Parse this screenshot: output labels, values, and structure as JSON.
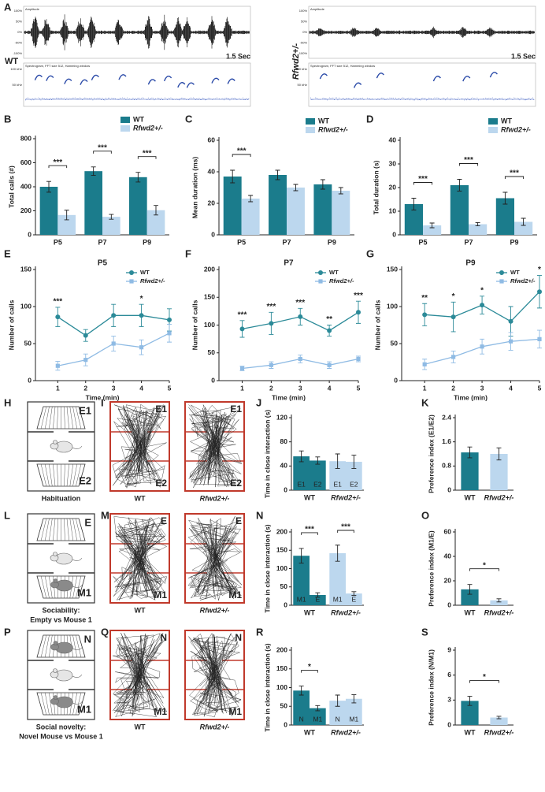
{
  "figure": {
    "panel_labels": [
      "A",
      "B",
      "C",
      "D",
      "E",
      "F",
      "G",
      "H",
      "I",
      "J",
      "K",
      "L",
      "M",
      "N",
      "O",
      "P",
      "Q",
      "R",
      "S"
    ],
    "audio": [
      {
        "genotype": "WT",
        "amplitude_title": "Amplitude",
        "amplitude_ticks": [
          "100%",
          "50%",
          "0%",
          "-50%",
          "-100%"
        ],
        "spectrogram_title": "Spectrogram, FFT size 512, Hamming window",
        "frequency_ticks": [
          "100 kHz",
          "50 kHz"
        ],
        "scale": "1.5 Sec"
      },
      {
        "genotype": "Rfwd2+/-",
        "amplitude_title": "Amplitude",
        "amplitude_ticks": [
          "100%",
          "50%",
          "0%",
          "-50%",
          "-100%"
        ],
        "spectrogram_title": "Spectrogram, FFT size 512, Hamming window",
        "frequency_ticks": [
          "100 kHz",
          "50 kHz"
        ],
        "scale": "1.5 Sec"
      }
    ],
    "tests": [
      {
        "top": "E1",
        "bottom": "E2",
        "caption": [
          "Habituation"
        ],
        "tracks": [
          {
            "genotype": "WT",
            "top": "E1",
            "bottom": "E2"
          },
          {
            "genotype": "Rfwd2+/-",
            "top": "E1",
            "bottom": "E2"
          }
        ]
      },
      {
        "top": "E",
        "bottom": "M1",
        "caption": [
          "Sociability:",
          "Empty vs Mouse 1"
        ],
        "tracks": [
          {
            "genotype": "WT",
            "top": "E",
            "bottom": "M1"
          },
          {
            "genotype": "Rfwd2+/-",
            "top": "E",
            "bottom": "M1"
          }
        ]
      },
      {
        "top": "N",
        "bottom": "M1",
        "caption": [
          "Social novelty:",
          "Novel Mouse vs Mouse 1"
        ],
        "tracks": [
          {
            "genotype": "WT",
            "top": "N",
            "bottom": "M1"
          },
          {
            "genotype": "Rfwd2+/-",
            "top": "N",
            "bottom": "M1"
          }
        ]
      }
    ]
  },
  "chart_data": [
    {
      "type": "bar",
      "ylabel": "Total calls (#)",
      "categories": [
        "P5",
        "P7",
        "P9"
      ],
      "series": [
        {
          "name": "WT",
          "color": "#1b7c8c",
          "values": [
            400,
            530,
            480
          ],
          "errors": [
            45,
            35,
            40
          ]
        },
        {
          "name": "Rfwd2+/-",
          "color": "#bcd7ee",
          "values": [
            165,
            150,
            205
          ],
          "errors": [
            40,
            20,
            40
          ]
        }
      ],
      "ylim": [
        0,
        800
      ],
      "yticks": [
        0,
        200,
        400,
        600,
        800
      ],
      "legend": "top-right",
      "significance": [
        {
          "text": "***",
          "category": "P5"
        },
        {
          "text": "***",
          "category": "P7"
        },
        {
          "text": "***",
          "category": "P9"
        }
      ]
    },
    {
      "type": "bar",
      "ylabel": "Mean duration (ms)",
      "categories": [
        "P5",
        "P7",
        "P9"
      ],
      "series": [
        {
          "name": "WT",
          "color": "#1b7c8c",
          "values": [
            37,
            38,
            32
          ],
          "errors": [
            4,
            3,
            3
          ]
        },
        {
          "name": "Rfwd2+/-",
          "color": "#bcd7ee",
          "values": [
            23,
            30,
            28
          ],
          "errors": [
            2,
            2,
            2
          ]
        }
      ],
      "ylim": [
        0,
        60
      ],
      "yticks": [
        0,
        20,
        40,
        60
      ],
      "legend": "top-right",
      "significance": [
        {
          "text": "***",
          "category": "P5"
        }
      ]
    },
    {
      "type": "bar",
      "ylabel": "Total duration (s)",
      "categories": [
        "P5",
        "P7",
        "P9"
      ],
      "series": [
        {
          "name": "WT",
          "color": "#1b7c8c",
          "values": [
            13,
            21,
            15.5
          ],
          "errors": [
            2.5,
            2.5,
            2.5
          ]
        },
        {
          "name": "Rfwd2+/-",
          "color": "#bcd7ee",
          "values": [
            4,
            4.5,
            5.5
          ],
          "errors": [
            1,
            0.7,
            1.5
          ]
        }
      ],
      "ylim": [
        0,
        40
      ],
      "yticks": [
        0,
        10,
        20,
        30,
        40
      ],
      "legend": "top-right",
      "significance": [
        {
          "text": "***",
          "category": "P5"
        },
        {
          "text": "***",
          "category": "P7"
        },
        {
          "text": "***",
          "category": "P9"
        }
      ]
    },
    {
      "type": "line",
      "title": "P5",
      "xlabel": "Time (min)",
      "ylabel": "Number of calls",
      "x": [
        1,
        2,
        3,
        4,
        5
      ],
      "xlim": [
        0.2,
        5
      ],
      "xticks": [
        1,
        2,
        3,
        4,
        5
      ],
      "ylim": [
        0,
        150
      ],
      "yticks": [
        0,
        50,
        100,
        150
      ],
      "legend": "top-right",
      "series": [
        {
          "name": "WT",
          "color": "#2b8a98",
          "marker": "circle",
          "values": [
            86,
            61,
            88,
            88,
            82
          ],
          "errors": [
            13,
            8,
            15,
            15,
            15
          ]
        },
        {
          "name": "Rfwd2+/-",
          "color": "#8fbbe4",
          "marker": "square",
          "values": [
            20,
            28,
            50,
            45,
            64
          ],
          "errors": [
            6,
            8,
            10,
            10,
            12
          ]
        }
      ],
      "annotations": [
        {
          "text": "***",
          "x": 1
        },
        {
          "text": "*",
          "x": 4
        }
      ]
    },
    {
      "type": "line",
      "title": "P7",
      "xlabel": "Time (min)",
      "ylabel": "Number of calls",
      "x": [
        1,
        2,
        3,
        4,
        5
      ],
      "xlim": [
        0.2,
        5
      ],
      "xticks": [
        1,
        2,
        3,
        4,
        5
      ],
      "ylim": [
        0,
        200
      ],
      "yticks": [
        0,
        50,
        100,
        150,
        200
      ],
      "legend": "top-right",
      "series": [
        {
          "name": "WT",
          "color": "#2b8a98",
          "marker": "circle",
          "values": [
            93,
            103,
            115,
            90,
            123
          ],
          "errors": [
            15,
            20,
            15,
            10,
            20
          ]
        },
        {
          "name": "Rfwd2+/-",
          "color": "#8fbbe4",
          "marker": "square",
          "values": [
            22,
            28,
            39,
            28,
            39
          ],
          "errors": [
            4,
            6,
            7,
            6,
            5
          ]
        }
      ],
      "annotations": [
        {
          "text": "***",
          "x": 1
        },
        {
          "text": "***",
          "x": 2
        },
        {
          "text": "***",
          "x": 3
        },
        {
          "text": "**",
          "x": 4
        },
        {
          "text": "***",
          "x": 5
        }
      ]
    },
    {
      "type": "line",
      "title": "P9",
      "xlabel": "Time (min)",
      "ylabel": "Number of calls",
      "x": [
        1,
        2,
        3,
        4,
        5
      ],
      "xlim": [
        0.2,
        5
      ],
      "xticks": [
        1,
        2,
        3,
        4,
        5
      ],
      "ylim": [
        0,
        150
      ],
      "yticks": [
        0,
        50,
        100,
        150
      ],
      "legend": "top-right",
      "series": [
        {
          "name": "WT",
          "color": "#2b8a98",
          "marker": "circle",
          "values": [
            89,
            86,
            102,
            80,
            120
          ],
          "errors": [
            15,
            20,
            12,
            20,
            22
          ]
        },
        {
          "name": "Rfwd2+/-",
          "color": "#8fbbe4",
          "marker": "square",
          "values": [
            22,
            32,
            46,
            53,
            56
          ],
          "errors": [
            7,
            8,
            10,
            12,
            12
          ]
        }
      ],
      "annotations": [
        {
          "text": "**",
          "x": 1
        },
        {
          "text": "*",
          "x": 2
        },
        {
          "text": "*",
          "x": 3
        },
        {
          "text": "*",
          "x": 5
        }
      ]
    },
    {
      "type": "bar",
      "ylabel": "Time in close interaction (s)",
      "categories": [
        "WT",
        "Rfwd2+/-"
      ],
      "category_colors": [
        "#1b7c8c",
        "#bcd7ee"
      ],
      "series": [
        {
          "name": "E1",
          "values": [
            56,
            48
          ],
          "errors": [
            9,
            12
          ]
        },
        {
          "name": "E2",
          "values": [
            49,
            47
          ],
          "errors": [
            6,
            11
          ]
        }
      ],
      "ylim": [
        0,
        120
      ],
      "yticks": [
        0,
        40,
        80,
        120
      ],
      "series_labels": "inside"
    },
    {
      "type": "bar",
      "ylabel": "Preference index (E1/E2)",
      "categories": [
        "WT",
        "Rfwd2+/-"
      ],
      "category_colors": [
        "#1b7c8c",
        "#bcd7ee"
      ],
      "values": [
        1.25,
        1.2
      ],
      "errors": [
        0.18,
        0.2
      ],
      "ylim": [
        0,
        2.4
      ],
      "yticks": [
        0,
        0.8,
        1.6,
        2.4
      ]
    },
    {
      "type": "bar",
      "ylabel": "Time in close interaction (s)",
      "categories": [
        "WT",
        "Rfwd2+/-"
      ],
      "category_colors": [
        "#1b7c8c",
        "#bcd7ee"
      ],
      "series": [
        {
          "name": "M1",
          "values": [
            135,
            142
          ],
          "errors": [
            20,
            22
          ]
        },
        {
          "name": "E",
          "values": [
            28,
            32
          ],
          "errors": [
            6,
            5
          ]
        }
      ],
      "ylim": [
        0,
        200
      ],
      "yticks": [
        0,
        50,
        100,
        150,
        200
      ],
      "series_labels": "inside",
      "significance": [
        {
          "text": "***",
          "category": "WT"
        },
        {
          "text": "***",
          "category": "Rfwd2+/-"
        }
      ]
    },
    {
      "type": "bar",
      "ylabel": "Preference index (M1/E)",
      "categories": [
        "WT",
        "Rfwd2+/-"
      ],
      "category_colors": [
        "#1b7c8c",
        "#bcd7ee"
      ],
      "values": [
        13,
        4
      ],
      "errors": [
        4,
        1.3
      ],
      "ylim": [
        0,
        60
      ],
      "yticks": [
        0,
        20,
        40,
        60
      ],
      "significance": [
        {
          "text": "*",
          "categories": [
            "WT",
            "Rfwd2+/-"
          ]
        }
      ]
    },
    {
      "type": "bar",
      "ylabel": "Time in close interaction (s)",
      "categories": [
        "WT",
        "Rfwd2+/-"
      ],
      "category_colors": [
        "#1b7c8c",
        "#bcd7ee"
      ],
      "series": [
        {
          "name": "N",
          "values": [
            92,
            65
          ],
          "errors": [
            12,
            15
          ]
        },
        {
          "name": "M1",
          "values": [
            45,
            70
          ],
          "errors": [
            7,
            11
          ]
        }
      ],
      "ylim": [
        0,
        200
      ],
      "yticks": [
        0,
        50,
        100,
        150,
        200
      ],
      "series_labels": "inside",
      "significance": [
        {
          "text": "*",
          "category": "WT"
        }
      ]
    },
    {
      "type": "bar",
      "ylabel": "Preference index (N/M1)",
      "categories": [
        "WT",
        "Rfwd2+/-"
      ],
      "category_colors": [
        "#1b7c8c",
        "#bcd7ee"
      ],
      "values": [
        2.9,
        0.9
      ],
      "errors": [
        0.55,
        0.15
      ],
      "ylim": [
        0,
        9
      ],
      "yticks": [
        0,
        3,
        6,
        9
      ],
      "significance": [
        {
          "text": "*",
          "categories": [
            "WT",
            "Rfwd2+/-"
          ]
        }
      ]
    }
  ]
}
